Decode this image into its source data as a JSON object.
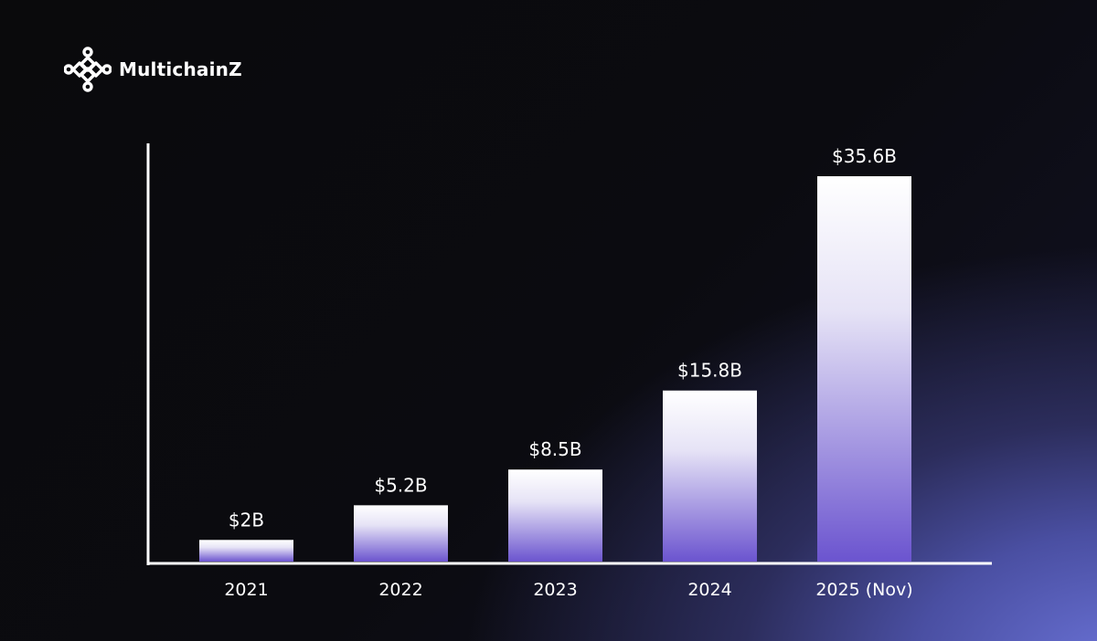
{
  "brand": {
    "name": "MultichainZ",
    "logo_icon": "multichainz-logo-icon"
  },
  "colors": {
    "background": "#0b0b10",
    "glow": "#6a72d6",
    "bar_top": "#ffffff",
    "bar_bottom": "#6b54cf",
    "axis": "#ffffff",
    "text": "#ffffff"
  },
  "chart_data": {
    "type": "bar",
    "title": "",
    "xlabel": "",
    "ylabel": "",
    "categories": [
      "2021",
      "2022",
      "2023",
      "2024",
      "2025 (Nov)"
    ],
    "values": [
      2,
      5.2,
      8.5,
      15.8,
      35.6
    ],
    "value_labels": [
      "$2B",
      "$5.2B",
      "$8.5B",
      "$15.8B",
      "$35.6B"
    ],
    "grid": false,
    "legend": "none"
  }
}
